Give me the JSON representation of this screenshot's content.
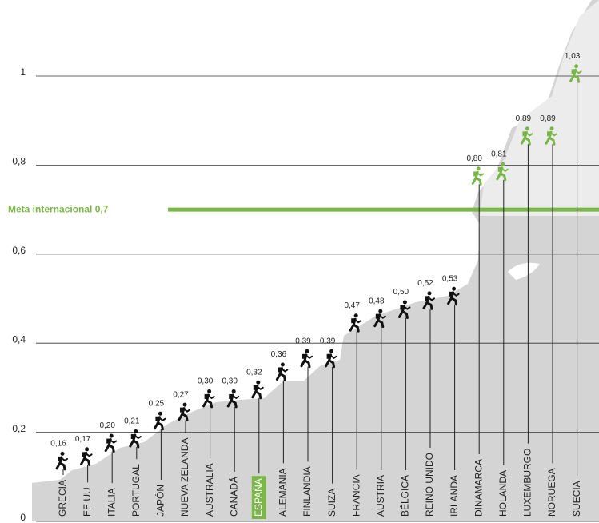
{
  "chart_data": {
    "type": "hikers",
    "categories": [
      "GRECIA",
      "EE UU",
      "ITALIA",
      "PORTUGAL",
      "JAPÓN",
      "NUEVA ZELANDA",
      "AUSTRALIA",
      "CANADÁ",
      "ESPAÑA",
      "ALEMANIA",
      "FINLANDIA",
      "SUIZA",
      "FRANCIA",
      "AUSTRIA",
      "BÉLGICA",
      "REINO UNIDO",
      "IRLANDA",
      "DINAMARCA",
      "HOLANDA",
      "LUXEMBURGO",
      "NORUEGA",
      "SUECIA"
    ],
    "values": [
      0.16,
      0.17,
      0.2,
      0.21,
      0.25,
      0.27,
      0.3,
      0.3,
      0.32,
      0.36,
      0.39,
      0.39,
      0.47,
      0.48,
      0.5,
      0.52,
      0.53,
      0.8,
      0.81,
      0.89,
      0.89,
      1.03
    ],
    "value_labels": [
      "0,16",
      "0,17",
      "0,20",
      "0,21",
      "0,25",
      "0,27",
      "0,30",
      "0,30",
      "0,32",
      "0,36",
      "0,39",
      "0,39",
      "0,47",
      "0,48",
      "0,50",
      "0,52",
      "0,53",
      "0,80",
      "0,81",
      "0,89",
      "0,89",
      "1,03"
    ],
    "ylim": [
      0,
      1
    ],
    "yticks": [
      0,
      {
        "value": 0.2,
        "label": "0,2"
      },
      {
        "value": 0.4,
        "label": "0,4"
      },
      {
        "value": 0.6,
        "label": "0,6"
      },
      {
        "value": 0.8,
        "label": "0,8"
      },
      1
    ],
    "target": {
      "value": 0.7,
      "label": "Meta internacional 0,7"
    },
    "color": "#111111",
    "above_target_color": "#7ab648",
    "highlight_index": 8,
    "grid": true
  }
}
